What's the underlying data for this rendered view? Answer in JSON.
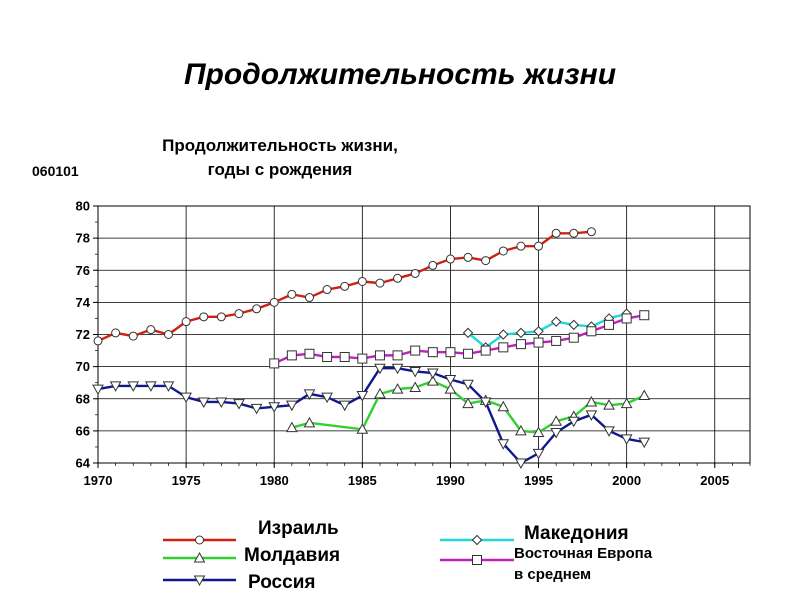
{
  "slide_title": "Продолжительность жизни",
  "code_label": "060101",
  "chart_data": {
    "type": "line",
    "title_lines": [
      "Продолжительность жизни,",
      "годы с рождения"
    ],
    "xlabel": "",
    "ylabel": "",
    "xlim": [
      1970,
      2007
    ],
    "ylim": [
      64,
      80
    ],
    "xticks": [
      1970,
      1975,
      1980,
      1985,
      1990,
      1995,
      2000,
      2005
    ],
    "yticks": [
      64,
      66,
      68,
      70,
      72,
      74,
      76,
      78,
      80
    ],
    "grid": true,
    "legend_position": "bottom",
    "series": [
      {
        "name": "Израиль",
        "color": "#d02010",
        "marker": "circle",
        "points": [
          [
            1970,
            71.6
          ],
          [
            1971,
            72.1
          ],
          [
            1972,
            71.9
          ],
          [
            1973,
            72.3
          ],
          [
            1974,
            72.0
          ],
          [
            1975,
            72.8
          ],
          [
            1976,
            73.1
          ],
          [
            1977,
            73.1
          ],
          [
            1978,
            73.3
          ],
          [
            1979,
            73.6
          ],
          [
            1980,
            74.0
          ],
          [
            1981,
            74.5
          ],
          [
            1982,
            74.3
          ],
          [
            1983,
            74.8
          ],
          [
            1984,
            75.0
          ],
          [
            1985,
            75.3
          ],
          [
            1986,
            75.2
          ],
          [
            1987,
            75.5
          ],
          [
            1988,
            75.8
          ],
          [
            1989,
            76.3
          ],
          [
            1990,
            76.7
          ],
          [
            1991,
            76.8
          ],
          [
            1992,
            76.6
          ],
          [
            1993,
            77.2
          ],
          [
            1994,
            77.5
          ],
          [
            1995,
            77.5
          ],
          [
            1996,
            78.3
          ],
          [
            1997,
            78.3
          ],
          [
            1998,
            78.4
          ]
        ]
      },
      {
        "name": "Македония",
        "color": "#20d8d8",
        "marker": "diamond",
        "points": [
          [
            1991,
            72.1
          ],
          [
            1992,
            71.2
          ],
          [
            1993,
            72.0
          ],
          [
            1994,
            72.1
          ],
          [
            1995,
            72.2
          ],
          [
            1996,
            72.8
          ],
          [
            1997,
            72.6
          ],
          [
            1998,
            72.5
          ],
          [
            1999,
            73.0
          ],
          [
            2000,
            73.3
          ]
        ]
      },
      {
        "name": "Молдавия",
        "color": "#30d030",
        "marker": "triangle-up",
        "points": [
          [
            1981,
            66.2
          ],
          [
            1982,
            66.5
          ],
          [
            1985,
            66.1
          ],
          [
            1986,
            68.3
          ],
          [
            1987,
            68.6
          ],
          [
            1988,
            68.7
          ],
          [
            1989,
            69.1
          ],
          [
            1990,
            68.6
          ],
          [
            1991,
            67.7
          ],
          [
            1992,
            67.9
          ],
          [
            1993,
            67.5
          ],
          [
            1994,
            66.0
          ],
          [
            1995,
            65.9
          ],
          [
            1996,
            66.6
          ],
          [
            1997,
            66.9
          ],
          [
            1998,
            67.8
          ],
          [
            1999,
            67.6
          ],
          [
            2000,
            67.7
          ],
          [
            2001,
            68.2
          ]
        ]
      },
      {
        "name": "Восточная Европа в среднем",
        "color": "#c020c0",
        "marker": "square",
        "points": [
          [
            1980,
            70.2
          ],
          [
            1981,
            70.7
          ],
          [
            1982,
            70.8
          ],
          [
            1983,
            70.6
          ],
          [
            1984,
            70.6
          ],
          [
            1985,
            70.5
          ],
          [
            1986,
            70.7
          ],
          [
            1987,
            70.7
          ],
          [
            1988,
            71.0
          ],
          [
            1989,
            70.9
          ],
          [
            1990,
            70.9
          ],
          [
            1991,
            70.8
          ],
          [
            1992,
            71.0
          ],
          [
            1993,
            71.2
          ],
          [
            1994,
            71.4
          ],
          [
            1995,
            71.5
          ],
          [
            1996,
            71.6
          ],
          [
            1997,
            71.8
          ],
          [
            1998,
            72.2
          ],
          [
            1999,
            72.6
          ],
          [
            2000,
            73.0
          ],
          [
            2001,
            73.2
          ]
        ]
      },
      {
        "name": "Россия",
        "color": "#101890",
        "marker": "triangle-down",
        "points": [
          [
            1970,
            68.6
          ],
          [
            1971,
            68.8
          ],
          [
            1972,
            68.8
          ],
          [
            1973,
            68.8
          ],
          [
            1974,
            68.8
          ],
          [
            1975,
            68.1
          ],
          [
            1976,
            67.8
          ],
          [
            1977,
            67.8
          ],
          [
            1978,
            67.7
          ],
          [
            1979,
            67.4
          ],
          [
            1980,
            67.5
          ],
          [
            1981,
            67.6
          ],
          [
            1982,
            68.3
          ],
          [
            1983,
            68.1
          ],
          [
            1984,
            67.6
          ],
          [
            1985,
            68.2
          ],
          [
            1986,
            69.9
          ],
          [
            1987,
            69.9
          ],
          [
            1988,
            69.7
          ],
          [
            1989,
            69.6
          ],
          [
            1990,
            69.2
          ],
          [
            1991,
            68.9
          ],
          [
            1992,
            67.8
          ],
          [
            1993,
            65.2
          ],
          [
            1994,
            64.0
          ],
          [
            1995,
            64.6
          ],
          [
            1996,
            65.9
          ],
          [
            1997,
            66.6
          ],
          [
            1998,
            67.0
          ],
          [
            1999,
            66.0
          ],
          [
            2000,
            65.5
          ],
          [
            2001,
            65.3
          ]
        ]
      }
    ]
  },
  "legend": {
    "israel": "Израиль",
    "moldova": "Молдавия",
    "russia": "Россия",
    "macedonia": "Македония",
    "eastern_europe_line1": "Восточная Европа",
    "eastern_europe_line2": "в среднем"
  }
}
